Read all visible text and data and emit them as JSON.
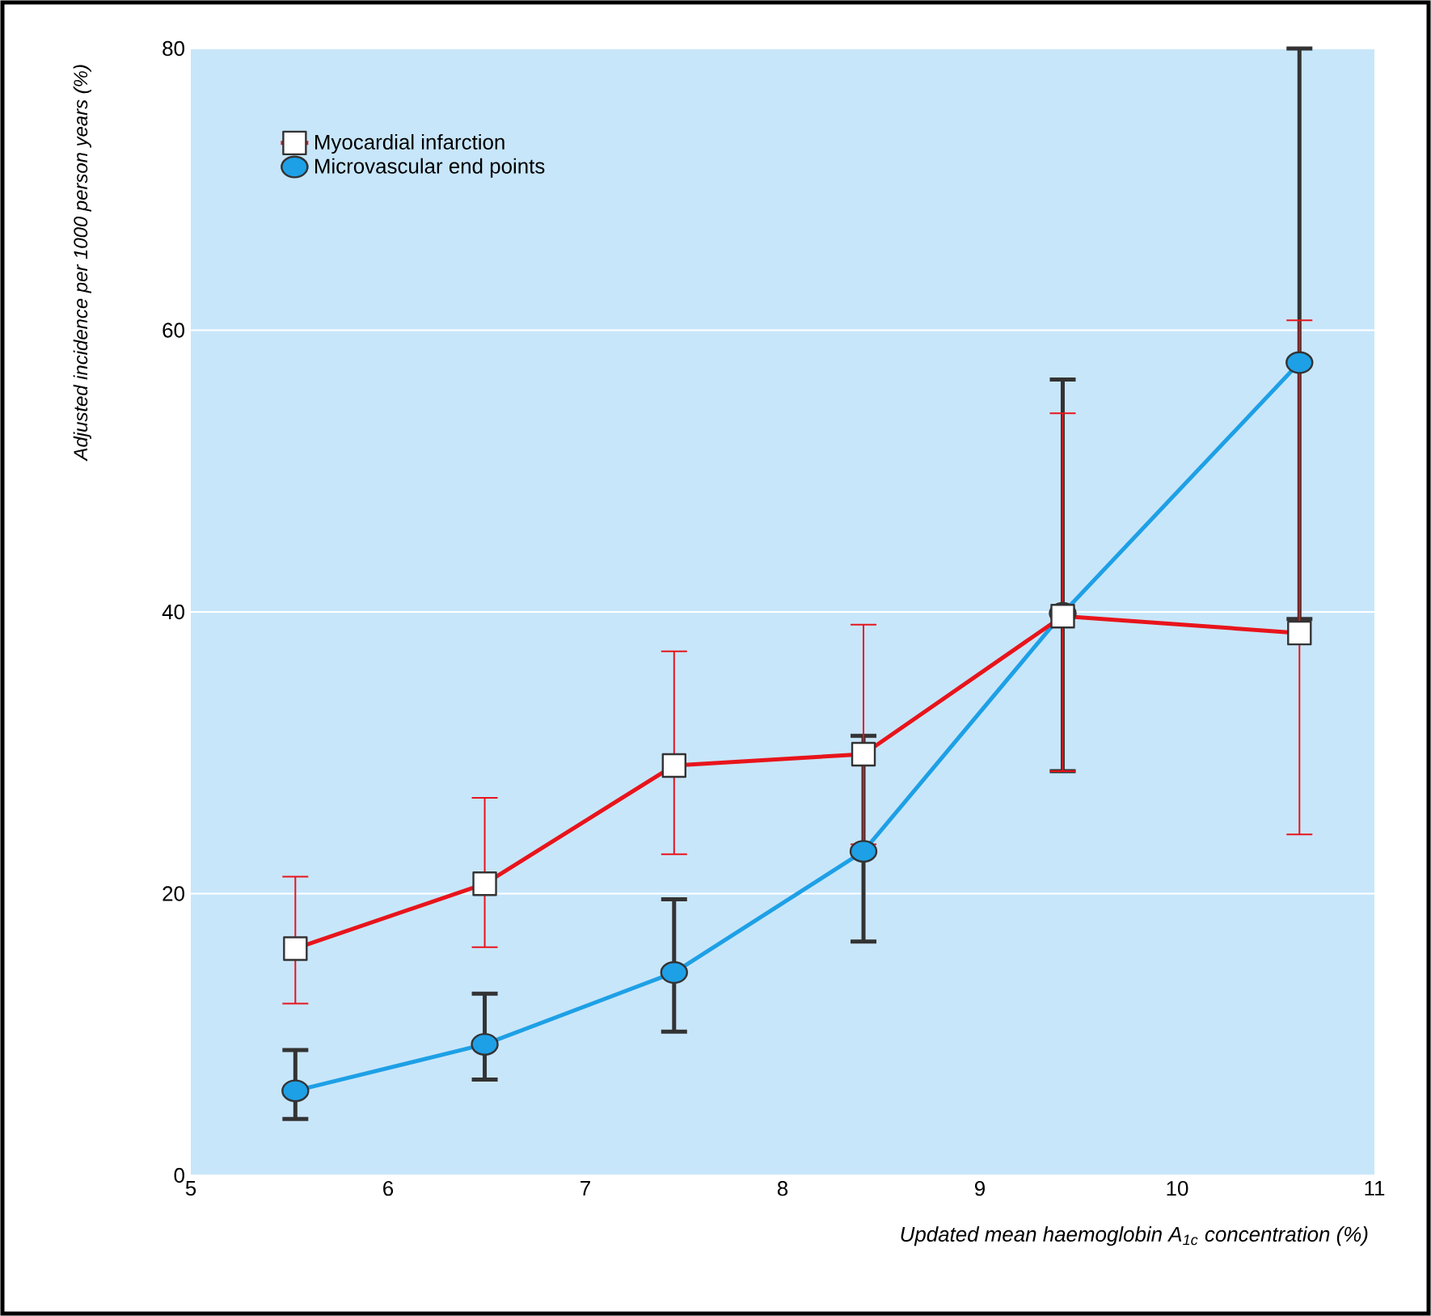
{
  "chart_data": {
    "type": "line",
    "xlabel": "Updated mean haemoglobin A$_{1c}$ concentration (%)",
    "ylabel": "Adjusted incidence per 1000 person years (%)",
    "xlim": [
      5,
      11
    ],
    "xticks": [
      5,
      6,
      7,
      8,
      9,
      10,
      11
    ],
    "ylim": [
      0,
      80
    ],
    "yticks": [
      0,
      20,
      40,
      60,
      80
    ],
    "grid": "y",
    "legend": "top left",
    "series": [
      {
        "name": "Myocardial infarction",
        "color": "#e8141b",
        "marker": "square",
        "x": [
          5.53,
          6.49,
          7.45,
          8.41,
          9.42,
          10.62
        ],
        "values": [
          16.1,
          20.7,
          29.1,
          29.9,
          39.7,
          38.5
        ],
        "errors": [
          [
            12.2,
            21.2
          ],
          [
            16.2,
            26.8
          ],
          [
            22.8,
            37.2
          ],
          [
            23.5,
            39.1
          ],
          [
            28.7,
            54.1
          ],
          [
            24.2,
            60.7
          ]
        ]
      },
      {
        "name": "Microvascular end points",
        "color": "#1ea0e6",
        "marker": "circle",
        "x": [
          5.53,
          6.49,
          7.45,
          8.41,
          9.42,
          10.62
        ],
        "values": [
          6.0,
          9.3,
          14.4,
          23.0,
          39.9,
          57.7
        ],
        "errors": [
          [
            4.0,
            8.9
          ],
          [
            6.8,
            12.9
          ],
          [
            10.2,
            19.6
          ],
          [
            16.6,
            31.2
          ],
          [
            28.7,
            56.5
          ],
          [
            39.5,
            80
          ]
        ]
      }
    ]
  }
}
